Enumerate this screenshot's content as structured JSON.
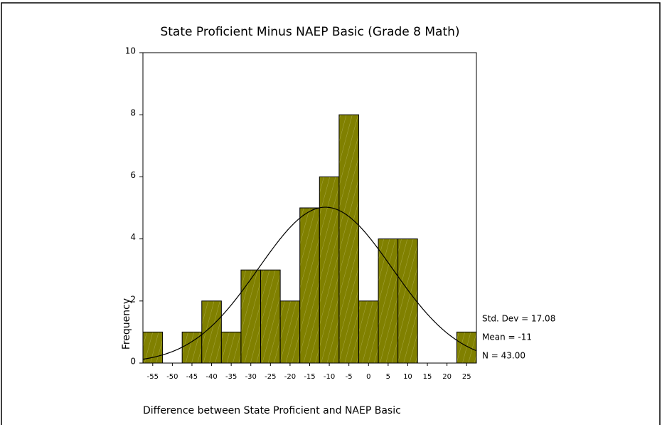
{
  "chart_data": {
    "type": "histogram",
    "title": "State Proficient Minus NAEP Basic (Grade 8 Math)",
    "xlabel": "Difference between State Proficient and NAEP Basic",
    "ylabel": "Frequency",
    "bins": [
      -57.5,
      -52.5,
      -47.5,
      -42.5,
      -37.5,
      -32.5,
      -27.5,
      -22.5,
      -17.5,
      -12.5,
      -7.5,
      -2.5,
      2.5,
      7.5,
      12.5,
      17.5,
      22.5,
      27.5
    ],
    "values": [
      1,
      0,
      1,
      2,
      1,
      3,
      3,
      2,
      5,
      6,
      8,
      2,
      4,
      4,
      0,
      0,
      1
    ],
    "color": "#808000",
    "xlim": [
      -57.5,
      27.5
    ],
    "xticks": [
      -55,
      -50,
      -45,
      -40,
      -35,
      -30,
      -25,
      -20,
      -15,
      -10,
      -5,
      0,
      5,
      10,
      15,
      20,
      25
    ],
    "ylim": [
      0,
      10
    ],
    "yticks": [
      0,
      2,
      4,
      6,
      8,
      10
    ],
    "normal_curve": {
      "values": [
        17.08,
        -11,
        43
      ],
      "value_labels": [
        "Std. Dev = 17.08",
        "Mean = -11",
        "N = 43.00"
      ]
    }
  }
}
